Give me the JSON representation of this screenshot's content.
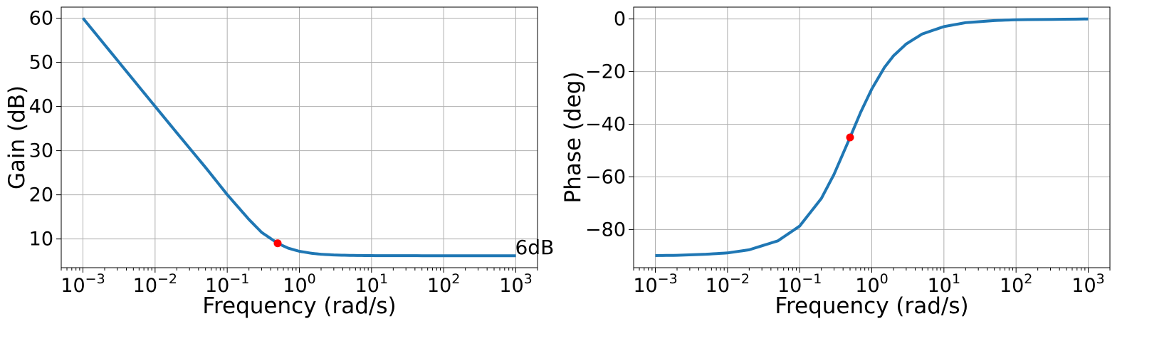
{
  "chart_data": [
    {
      "type": "line",
      "xscale": "log",
      "xlabel": "Frequency (rad/s)",
      "ylabel": "Gain (dB)",
      "xlim": [
        0.0005,
        2000
      ],
      "ylim": [
        3.5,
        62.5
      ],
      "x_ticks": [
        0.001,
        0.01,
        0.1,
        1,
        10,
        100,
        1000
      ],
      "x_tick_labels": [
        {
          "base": "10",
          "exp": "−3"
        },
        {
          "base": "10",
          "exp": "−2"
        },
        {
          "base": "10",
          "exp": "−1"
        },
        {
          "base": "10",
          "exp": "0"
        },
        {
          "base": "10",
          "exp": "1"
        },
        {
          "base": "10",
          "exp": "2"
        },
        {
          "base": "10",
          "exp": "3"
        }
      ],
      "y_ticks": [
        10,
        20,
        30,
        40,
        50,
        60
      ],
      "y_tick_labels": [
        "10",
        "20",
        "30",
        "40",
        "50",
        "60"
      ],
      "grid": true,
      "series": [
        {
          "color": "#1f77b4",
          "x": [
            0.001,
            0.002,
            0.005,
            0.01,
            0.02,
            0.05,
            0.1,
            0.2,
            0.3,
            0.5,
            0.7,
            1,
            1.5,
            2,
            3,
            5,
            10,
            20,
            50,
            100,
            1000
          ],
          "y": [
            60.0,
            53.98,
            46.03,
            40.02,
            34.04,
            26.2,
            20.04,
            14.42,
            11.49,
            9.03,
            7.92,
            7.21,
            6.74,
            6.54,
            6.38,
            6.28,
            6.23,
            6.22,
            6.21,
            6.21,
            6.21
          ]
        }
      ],
      "markers": [
        {
          "x": 0.5,
          "y": 9.03,
          "color": "#ff0000"
        }
      ],
      "annotations": [
        {
          "text": "6dB",
          "x": 1000,
          "y": 6.21
        }
      ]
    },
    {
      "type": "line",
      "xscale": "log",
      "xlabel": "Frequency (rad/s)",
      "ylabel": "Phase (deg)",
      "xlim": [
        0.0005,
        2000
      ],
      "ylim": [
        -94.5,
        4.5
      ],
      "x_ticks": [
        0.001,
        0.01,
        0.1,
        1,
        10,
        100,
        1000
      ],
      "x_tick_labels": [
        {
          "base": "10",
          "exp": "−3"
        },
        {
          "base": "10",
          "exp": "−2"
        },
        {
          "base": "10",
          "exp": "−1"
        },
        {
          "base": "10",
          "exp": "0"
        },
        {
          "base": "10",
          "exp": "1"
        },
        {
          "base": "10",
          "exp": "2"
        },
        {
          "base": "10",
          "exp": "3"
        }
      ],
      "y_ticks": [
        -80,
        -60,
        -40,
        -20,
        0
      ],
      "y_tick_labels": [
        "−80",
        "−60",
        "−40",
        "−20",
        "0"
      ],
      "grid": true,
      "series": [
        {
          "color": "#1f77b4",
          "x": [
            0.001,
            0.002,
            0.005,
            0.01,
            0.02,
            0.05,
            0.1,
            0.2,
            0.3,
            0.5,
            0.7,
            1,
            1.5,
            2,
            3,
            5,
            10,
            20,
            50,
            100,
            1000
          ],
          "y": [
            -89.9,
            -89.8,
            -89.4,
            -88.9,
            -87.7,
            -84.3,
            -78.7,
            -68.2,
            -59.0,
            -45.0,
            -35.5,
            -26.6,
            -18.4,
            -14.0,
            -9.5,
            -5.7,
            -2.9,
            -1.4,
            -0.6,
            -0.3,
            0.0
          ]
        }
      ],
      "markers": [
        {
          "x": 0.5,
          "y": -45.0,
          "color": "#ff0000"
        }
      ],
      "annotations": []
    }
  ]
}
